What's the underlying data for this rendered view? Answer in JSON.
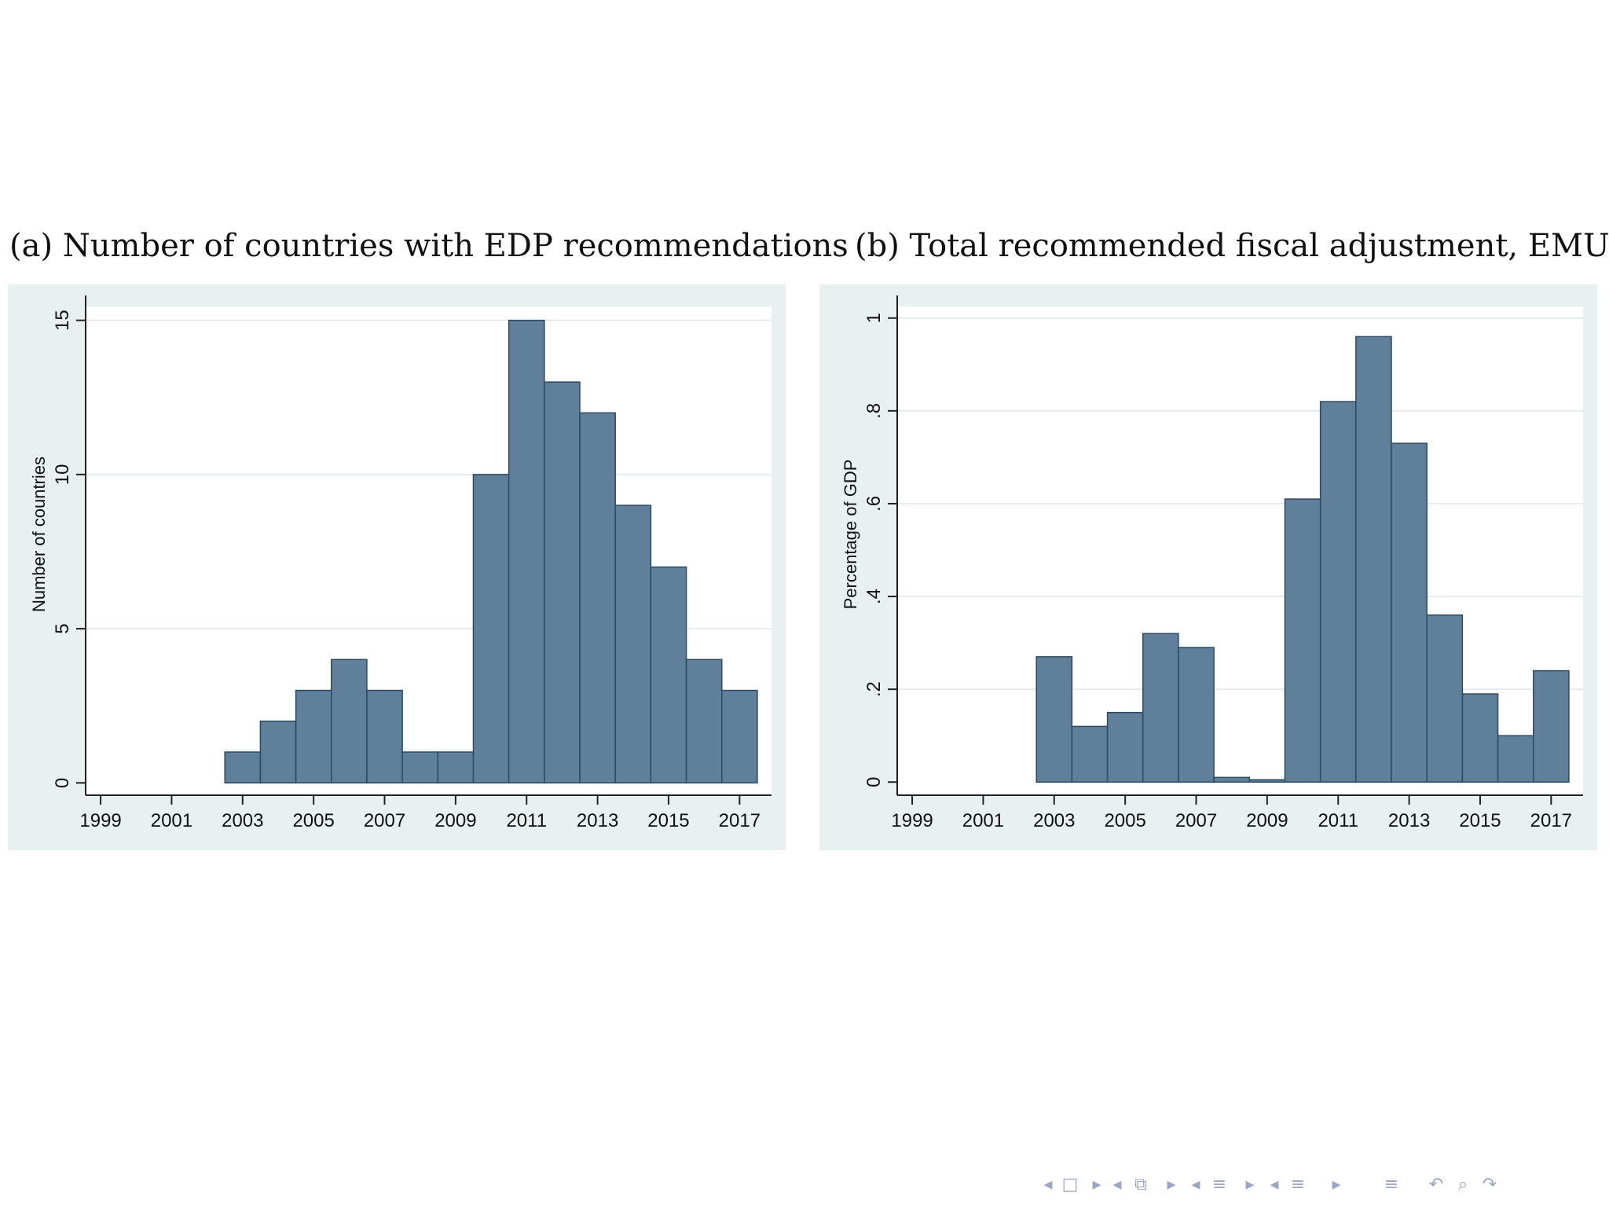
{
  "colors": {
    "bar_fill": "#5f7f9b",
    "bar_stroke": "#2e4a60",
    "plot_region_bg": "#ffffff",
    "graph_region_bg": "#e9f0f2",
    "grid": "#e4ebee",
    "nav": "#9aa6c4"
  },
  "panels": {
    "a": {
      "title": "(a) Number of countries with EDP recommendations"
    },
    "b": {
      "title": "(b) Total recommended fiscal adjustment, EMU"
    }
  },
  "chart_data": [
    {
      "type": "bar",
      "title": "(a) Number of countries with EDP recommendations",
      "xlabel": "",
      "ylabel": "Number of countries",
      "x": [
        2003,
        2004,
        2005,
        2006,
        2007,
        2008,
        2009,
        2010,
        2011,
        2012,
        2013,
        2014,
        2015,
        2016,
        2017
      ],
      "values": [
        1,
        2,
        3,
        4,
        3,
        1,
        1,
        10,
        15,
        13,
        12,
        9,
        7,
        4,
        3
      ],
      "xlim": [
        1998.6,
        2017.9
      ],
      "ylim": [
        -0.35,
        15.45
      ],
      "xticks": [
        1999,
        2001,
        2003,
        2005,
        2007,
        2009,
        2011,
        2013,
        2015,
        2017
      ],
      "xtick_labels": [
        "1999",
        "2001",
        "2003",
        "2005",
        "2007",
        "2009",
        "2011",
        "2013",
        "2015",
        "2017"
      ],
      "yticks": [
        0,
        5,
        10,
        15
      ],
      "ytick_labels": [
        "0",
        "5",
        "10",
        "15"
      ],
      "grid": true
    },
    {
      "type": "bar",
      "title": "(b) Total recommended fiscal adjustment, EMU",
      "xlabel": "",
      "ylabel": "Percentage of GDP",
      "x": [
        2003,
        2004,
        2005,
        2006,
        2007,
        2008,
        2009,
        2010,
        2011,
        2012,
        2013,
        2014,
        2015,
        2016,
        2017
      ],
      "values": [
        0.27,
        0.12,
        0.15,
        0.32,
        0.29,
        0.01,
        0.005,
        0.61,
        0.82,
        0.96,
        0.73,
        0.36,
        0.19,
        0.1,
        0.24
      ],
      "xlim": [
        1998.6,
        2017.9
      ],
      "ylim": [
        -0.025,
        1.025
      ],
      "xticks": [
        1999,
        2001,
        2003,
        2005,
        2007,
        2009,
        2011,
        2013,
        2015,
        2017
      ],
      "xtick_labels": [
        "1999",
        "2001",
        "2003",
        "2005",
        "2007",
        "2009",
        "2011",
        "2013",
        "2015",
        "2017"
      ],
      "yticks": [
        0,
        0.2,
        0.4,
        0.6,
        0.8,
        1
      ],
      "ytick_labels": [
        "0",
        ".2",
        ".4",
        ".6",
        ".8",
        "1"
      ],
      "grid": true
    }
  ],
  "navigation": {
    "icons": [
      "arrow-left-icon",
      "frame-icon",
      "arrow-right-icon",
      "arrow-left-icon",
      "subsection-icon",
      "arrow-right-icon",
      "arrow-left-icon",
      "section-icon",
      "arrow-right-icon",
      "arrow-left-icon",
      "list-icon",
      "arrow-right-icon",
      "menu-icon",
      "undo-icon",
      "search-icon",
      "redo-icon"
    ]
  }
}
